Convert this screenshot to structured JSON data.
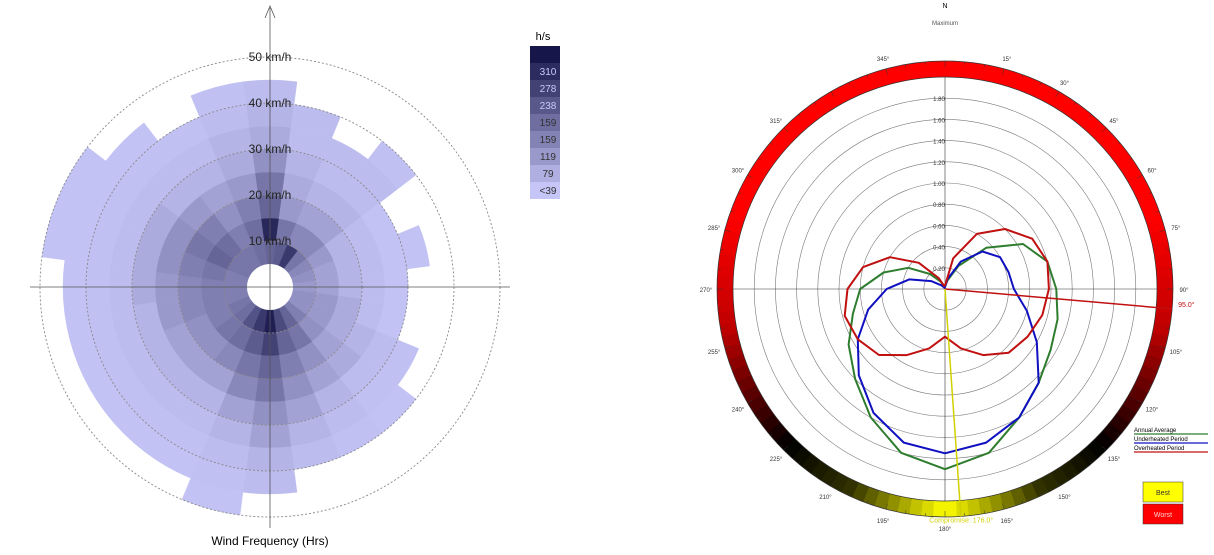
{
  "chart_data": [
    {
      "type": "polar-heatmap",
      "xlabel": "Wind Frequency (Hrs)",
      "rings": [
        "10 km/h",
        "20 km/h",
        "30 km/h",
        "40 km/h",
        "50 km/h"
      ],
      "legend": {
        "title": "h/s",
        "values": [
          "",
          "310",
          "278",
          "238",
          "159",
          "159",
          "119",
          "79",
          "<39"
        ]
      },
      "colors": {
        "low": "#c5c5f7",
        "high": "#16164a"
      },
      "speed_bins": [
        0,
        5,
        10,
        15,
        20,
        25,
        30,
        35,
        40,
        45,
        50
      ],
      "sectors": [
        {
          "dir": 0,
          "levels": [
            0.45,
            0.55,
            0.9,
            0.55,
            0.45,
            0.3,
            0.15,
            0.1,
            0.05
          ]
        },
        {
          "dir": 15,
          "levels": [
            0.4,
            0.6,
            0.45,
            0.25,
            0.15,
            0.1,
            0.05,
            0.05
          ]
        },
        {
          "dir": 30,
          "levels": [
            0.45,
            0.8,
            0.35,
            0.2,
            0.1,
            0.05,
            0.05
          ]
        },
        {
          "dir": 45,
          "levels": [
            0.4,
            0.45,
            0.35,
            0.2,
            0.1,
            0.05,
            0.05,
            0.03
          ]
        },
        {
          "dir": 60,
          "levels": [
            0.3,
            0.35,
            0.25,
            0.1,
            0.05,
            0.02
          ]
        },
        {
          "dir": 75,
          "levels": [
            0.3,
            0.3,
            0.2,
            0.1,
            0.05,
            0.02,
            0.02
          ]
        },
        {
          "dir": 90,
          "levels": [
            0.3,
            0.25,
            0.2,
            0.1,
            0.05,
            0.02
          ]
        },
        {
          "dir": 105,
          "levels": [
            0.35,
            0.3,
            0.25,
            0.15,
            0.05,
            0.02
          ]
        },
        {
          "dir": 120,
          "levels": [
            0.35,
            0.3,
            0.25,
            0.15,
            0.1,
            0.05,
            0.03
          ]
        },
        {
          "dir": 135,
          "levels": [
            0.4,
            0.4,
            0.3,
            0.2,
            0.15,
            0.05,
            0.03,
            0.02
          ]
        },
        {
          "dir": 150,
          "levels": [
            0.45,
            0.55,
            0.45,
            0.3,
            0.2,
            0.1,
            0.05,
            0.03
          ]
        },
        {
          "dir": 165,
          "levels": [
            0.5,
            0.7,
            0.55,
            0.4,
            0.3,
            0.2,
            0.1,
            0.05
          ]
        },
        {
          "dir": 180,
          "levels": [
            0.55,
            0.95,
            0.75,
            0.55,
            0.45,
            0.3,
            0.2,
            0.1,
            0.05
          ]
        },
        {
          "dir": 195,
          "levels": [
            0.55,
            0.8,
            0.6,
            0.45,
            0.35,
            0.2,
            0.1,
            0.05,
            0.03,
            0.02
          ]
        },
        {
          "dir": 210,
          "levels": [
            0.5,
            0.65,
            0.5,
            0.35,
            0.2,
            0.1,
            0.05,
            0.03,
            0.02
          ]
        },
        {
          "dir": 225,
          "levels": [
            0.45,
            0.5,
            0.45,
            0.3,
            0.2,
            0.1,
            0.05,
            0.03,
            0.02
          ]
        },
        {
          "dir": 240,
          "levels": [
            0.45,
            0.45,
            0.4,
            0.3,
            0.2,
            0.1,
            0.05,
            0.03,
            0.02
          ]
        },
        {
          "dir": 255,
          "levels": [
            0.4,
            0.4,
            0.4,
            0.35,
            0.25,
            0.1,
            0.05,
            0.03,
            0.02
          ]
        },
        {
          "dir": 270,
          "levels": [
            0.35,
            0.4,
            0.4,
            0.35,
            0.25,
            0.15,
            0.05,
            0.03,
            0.02
          ]
        },
        {
          "dir": 285,
          "levels": [
            0.35,
            0.4,
            0.45,
            0.4,
            0.3,
            0.15,
            0.05,
            0.03,
            0.02,
            0.02
          ]
        },
        {
          "dir": 300,
          "levels": [
            0.4,
            0.45,
            0.55,
            0.45,
            0.3,
            0.15,
            0.05,
            0.03,
            0.02,
            0.02
          ]
        },
        {
          "dir": 315,
          "levels": [
            0.4,
            0.45,
            0.5,
            0.4,
            0.25,
            0.1,
            0.05,
            0.03,
            0.02
          ]
        },
        {
          "dir": 330,
          "levels": [
            0.4,
            0.45,
            0.4,
            0.3,
            0.2,
            0.1,
            0.05,
            0.03
          ]
        },
        {
          "dir": 345,
          "levels": [
            0.45,
            0.5,
            0.5,
            0.4,
            0.25,
            0.15,
            0.1,
            0.05,
            0.03
          ]
        }
      ]
    },
    {
      "type": "polar-line",
      "north_label": "N",
      "top_annotation": "Maximum",
      "radial_labels": [
        "0.20",
        "0.40",
        "0.60",
        "0.80",
        "1.00",
        "1.20",
        "1.40",
        "1.60",
        "1.80"
      ],
      "rmax": 2.0,
      "angle_labels": [
        "15°",
        "30°",
        "45°",
        "60°",
        "75°",
        "90°",
        "105°",
        "120°",
        "135°",
        "150°",
        "165°",
        "180°",
        "195°",
        "210°",
        "225°",
        "240°",
        "255°",
        "270°",
        "285°",
        "300°",
        "315°",
        "345°"
      ],
      "ring_color_stops": [
        {
          "deg": 0,
          "color": "#ff0000"
        },
        {
          "deg": 70,
          "color": "#ff0000"
        },
        {
          "deg": 100,
          "color": "#c00000"
        },
        {
          "deg": 135,
          "color": "#000000"
        },
        {
          "deg": 155,
          "color": "#333300"
        },
        {
          "deg": 180,
          "color": "#ffff00"
        },
        {
          "deg": 205,
          "color": "#333300"
        },
        {
          "deg": 225,
          "color": "#000000"
        },
        {
          "deg": 260,
          "color": "#c00000"
        },
        {
          "deg": 290,
          "color": "#ff0000"
        },
        {
          "deg": 360,
          "color": "#ff0000"
        }
      ],
      "series": [
        {
          "name": "Annual Average",
          "color": "#2e7d2e",
          "r": [
            0.02,
            0.08,
            0.25,
            0.55,
            0.85,
            1.0,
            1.05,
            1.1,
            1.15,
            1.25,
            1.4,
            1.6,
            1.7,
            1.6,
            1.4,
            1.2,
            1.05,
            0.9,
            0.8,
            0.6,
            0.4,
            0.2,
            0.08,
            0.02
          ]
        },
        {
          "name": "Underheated Period",
          "color": "#1010c0",
          "r": [
            0.02,
            0.1,
            0.3,
            0.5,
            0.6,
            0.62,
            0.65,
            0.8,
            1.0,
            1.25,
            1.4,
            1.5,
            1.55,
            1.5,
            1.35,
            1.15,
            0.95,
            0.75,
            0.55,
            0.35,
            0.15,
            0.05,
            0.02,
            0.01
          ]
        },
        {
          "name": "Overheated Period",
          "color": "#c01010",
          "r": [
            0.03,
            0.3,
            0.6,
            0.8,
            0.95,
            1.0,
            0.98,
            0.95,
            0.9,
            0.85,
            0.72,
            0.58,
            0.45,
            0.58,
            0.72,
            0.88,
            0.95,
            0.98,
            0.92,
            0.8,
            0.6,
            0.35,
            0.12,
            0.03
          ]
        }
      ],
      "indicators": [
        {
          "label": "95.0°",
          "deg": 95.0,
          "color": "#c01010"
        },
        {
          "label": "Compromise: 176.0°",
          "deg": 176.0,
          "color": "#d0d000"
        }
      ],
      "legend_boxes": [
        {
          "label": "Best",
          "color": "#ffff00"
        },
        {
          "label": "Worst",
          "color": "#ff0000"
        }
      ]
    }
  ]
}
